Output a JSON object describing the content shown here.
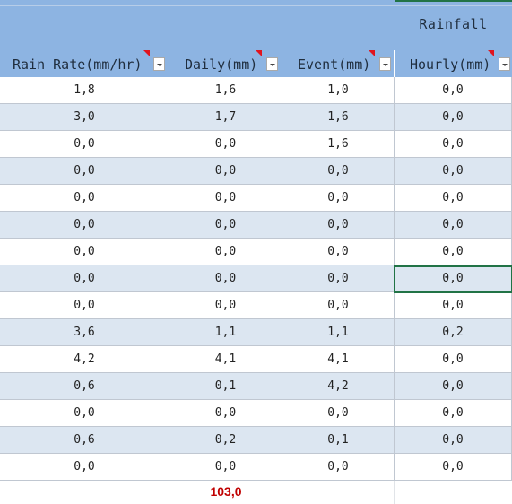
{
  "group_header": {
    "title": "Rainfall"
  },
  "columns": [
    {
      "label": "Rain Rate(mm/hr)"
    },
    {
      "label": "Daily(mm)"
    },
    {
      "label": "Event(mm)"
    },
    {
      "label": "Hourly(mm)"
    }
  ],
  "rows": [
    [
      "1,8",
      "1,6",
      "1,0",
      "0,0"
    ],
    [
      "3,0",
      "1,7",
      "1,6",
      "0,0"
    ],
    [
      "0,0",
      "0,0",
      "1,6",
      "0,0"
    ],
    [
      "0,0",
      "0,0",
      "0,0",
      "0,0"
    ],
    [
      "0,0",
      "0,0",
      "0,0",
      "0,0"
    ],
    [
      "0,0",
      "0,0",
      "0,0",
      "0,0"
    ],
    [
      "0,0",
      "0,0",
      "0,0",
      "0,0"
    ],
    [
      "0,0",
      "0,0",
      "0,0",
      "0,0"
    ],
    [
      "0,0",
      "0,0",
      "0,0",
      "0,0"
    ],
    [
      "3,6",
      "1,1",
      "1,1",
      "0,2"
    ],
    [
      "4,2",
      "4,1",
      "4,1",
      "0,0"
    ],
    [
      "0,6",
      "0,1",
      "4,2",
      "0,0"
    ],
    [
      "0,0",
      "0,0",
      "0,0",
      "0,0"
    ],
    [
      "0,6",
      "0,2",
      "0,1",
      "0,0"
    ],
    [
      "0,0",
      "0,0",
      "0,0",
      "0,0"
    ]
  ],
  "total": {
    "daily": "103,0"
  },
  "colors": {
    "header": "#8db4e2",
    "band": "#dce6f1",
    "selection": "#217346",
    "total_text": "#c00000",
    "comment_marker": "#e0141e"
  }
}
